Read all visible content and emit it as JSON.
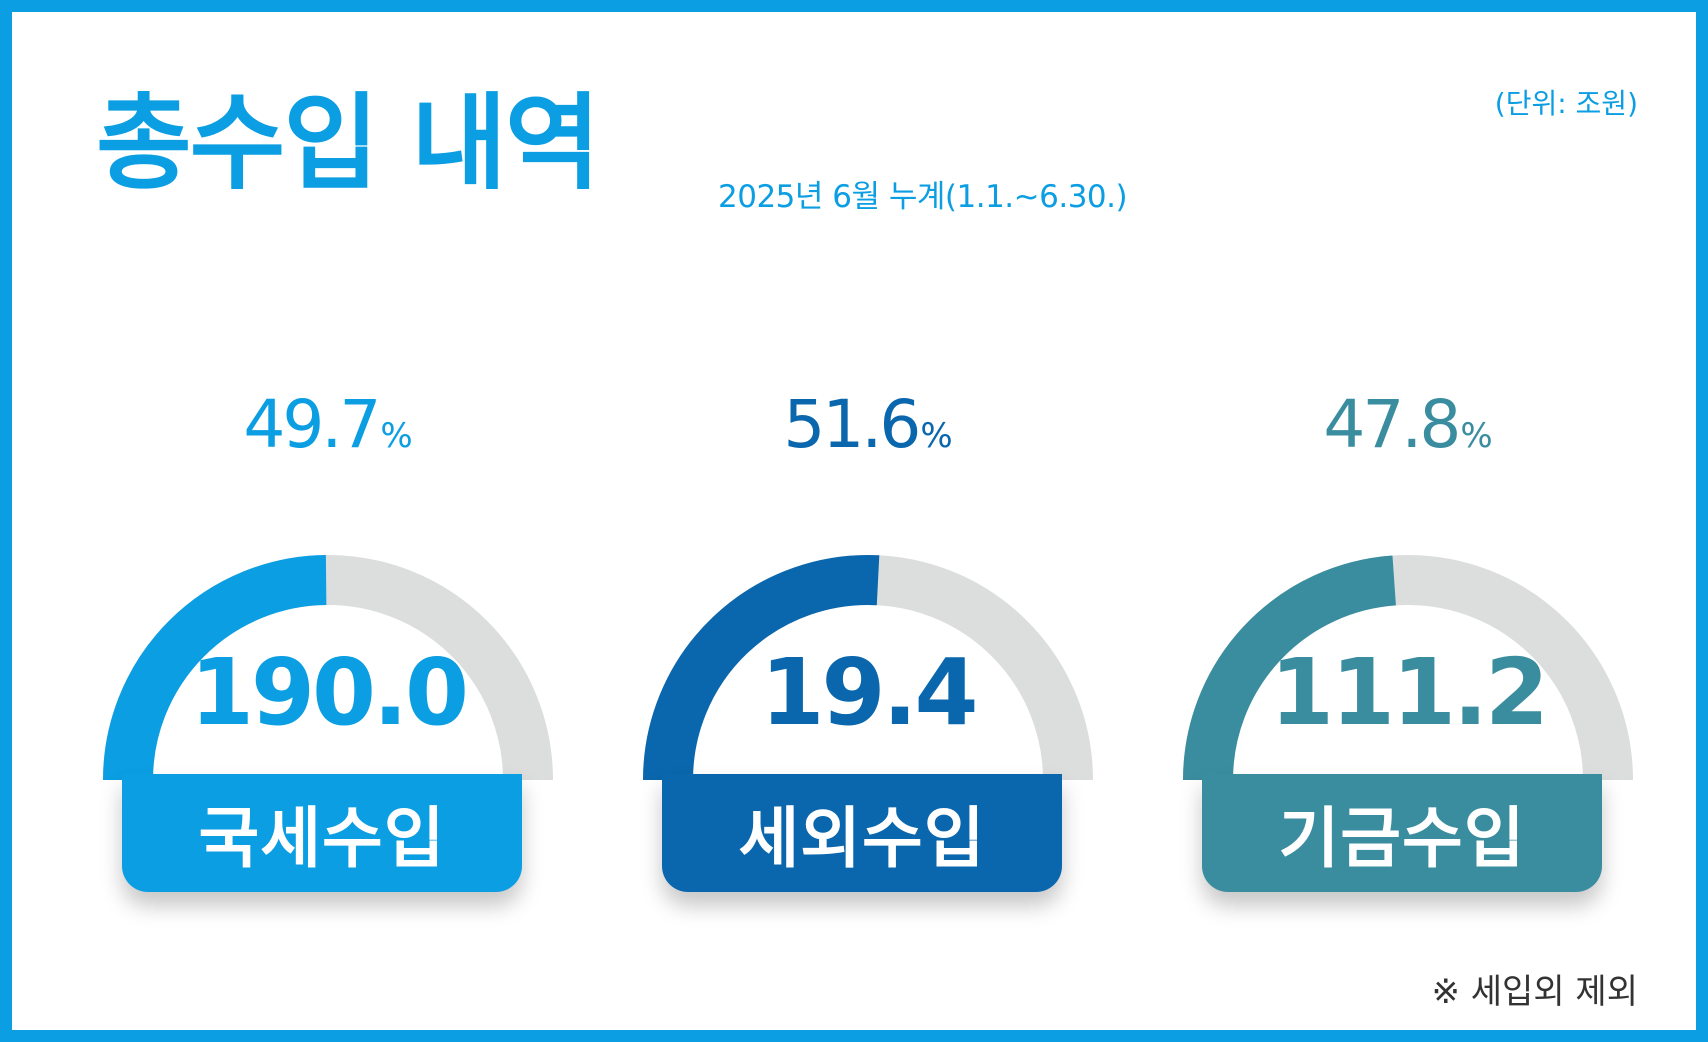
{
  "header": {
    "title": "총수입 내역",
    "period": "2025년 6월 누계(1.1.~6.30.)",
    "unit": "(단위: 조원)"
  },
  "footnote": "※ 세입외 제외",
  "colors": {
    "frame": "#0b9ee2",
    "track": "#dcdddd",
    "national_tax": "#0b9ee2",
    "non_tax": "#0a67ad",
    "fund": "#3a8d9f"
  },
  "chart_data": {
    "type": "gauge",
    "percent_sign": "%",
    "series": [
      {
        "name": "국세수입",
        "value": "190.0",
        "percent": "49.7",
        "color": "#0b9ee2"
      },
      {
        "name": "세외수입",
        "value": "19.4",
        "percent": "51.6",
        "color": "#0a67ad"
      },
      {
        "name": "기금수입",
        "value": "111.2",
        "percent": "47.8",
        "color": "#3a8d9f"
      }
    ]
  }
}
